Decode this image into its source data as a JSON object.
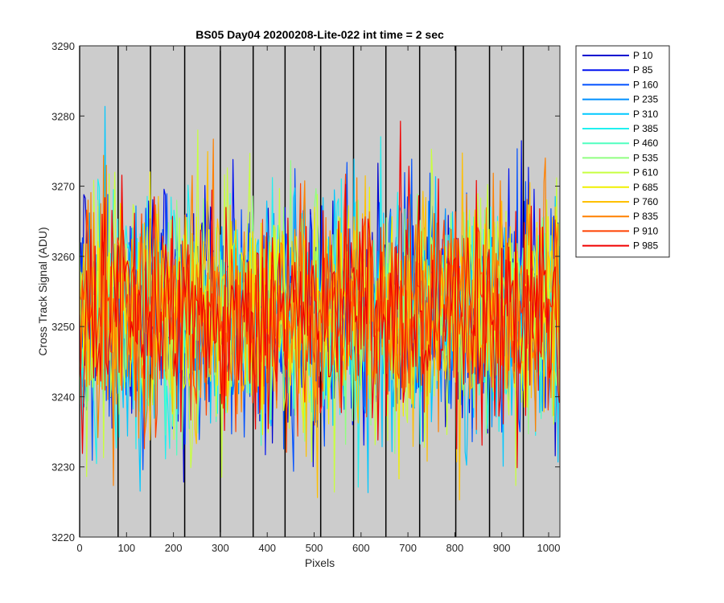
{
  "chart_data": {
    "type": "line",
    "title": "BS05 Day04 20200208-Lite-022 int time = 2 sec",
    "xlabel": "Pixels",
    "ylabel": "Cross Track Signal (ADU)",
    "xlim": [
      0,
      1024
    ],
    "ylim": [
      3220,
      3290
    ],
    "xticks": [
      0,
      100,
      200,
      300,
      400,
      500,
      600,
      700,
      800,
      900,
      1000
    ],
    "yticks": [
      3220,
      3230,
      3240,
      3250,
      3260,
      3270,
      3280,
      3290
    ],
    "grid": false,
    "background": "#cccccc",
    "legend_position": "outside-top-right",
    "band_boundaries": [
      0,
      82,
      151,
      224,
      300,
      370,
      438,
      514,
      584,
      653,
      725,
      802,
      874,
      946
    ],
    "signal": {
      "mean": 3252,
      "min": 3225,
      "max": 3282
    },
    "series": [
      {
        "name": "P 10",
        "color": "#0000d0"
      },
      {
        "name": "P 85",
        "color": "#0010f0"
      },
      {
        "name": "P 160",
        "color": "#0050ff"
      },
      {
        "name": "P 235",
        "color": "#0090ff"
      },
      {
        "name": "P 310",
        "color": "#00c8ff"
      },
      {
        "name": "P 385",
        "color": "#20f0ef"
      },
      {
        "name": "P 460",
        "color": "#50ffc0"
      },
      {
        "name": "P 535",
        "color": "#90ff80"
      },
      {
        "name": "P 610",
        "color": "#c8ff40"
      },
      {
        "name": "P 685",
        "color": "#f0f000"
      },
      {
        "name": "P 760",
        "color": "#ffc000"
      },
      {
        "name": "P 835",
        "color": "#ff8000"
      },
      {
        "name": "P 910",
        "color": "#ff4000"
      },
      {
        "name": "P 985",
        "color": "#f00000"
      }
    ]
  }
}
